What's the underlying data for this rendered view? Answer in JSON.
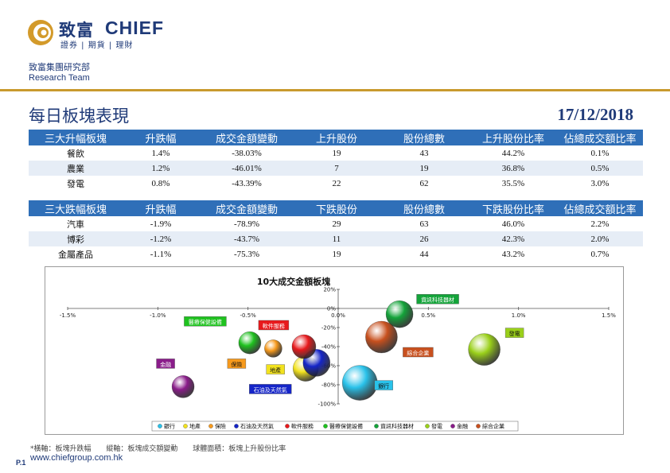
{
  "header": {
    "logo_cn": "致富",
    "logo_en": "CHIEF",
    "logo_tag": "證券 | 期貨 | 理財",
    "dept_cn": "致富集團研究部",
    "dept_en": "Research Team"
  },
  "title": "每日板塊表現",
  "date": "17/12/2018",
  "up_table": {
    "headers": [
      "三大升幅板塊",
      "升跌幅",
      "成交金額變動",
      "上升股份",
      "股份總數",
      "上升股份比率",
      "佔總成交額比率"
    ],
    "rows": [
      [
        "餐飲",
        "1.4%",
        "-38.03%",
        "19",
        "43",
        "44.2%",
        "0.1%"
      ],
      [
        "農業",
        "1.2%",
        "-46.01%",
        "7",
        "19",
        "36.8%",
        "0.5%"
      ],
      [
        "發電",
        "0.8%",
        "-43.39%",
        "22",
        "62",
        "35.5%",
        "3.0%"
      ]
    ]
  },
  "down_table": {
    "headers": [
      "三大跌幅板塊",
      "升跌幅",
      "成交金額變動",
      "下跌股份",
      "股份總數",
      "下跌股份比率",
      "佔總成交額比率"
    ],
    "rows": [
      [
        "汽車",
        "-1.9%",
        "-78.9%",
        "29",
        "63",
        "46.0%",
        "2.2%"
      ],
      [
        "博彩",
        "-1.2%",
        "-43.7%",
        "11",
        "26",
        "42.3%",
        "2.0%"
      ],
      [
        "金屬產品",
        "-1.1%",
        "-75.3%",
        "19",
        "44",
        "43.2%",
        "0.7%"
      ]
    ]
  },
  "chart_data": {
    "type": "scatter",
    "title": "10大成交金額板塊",
    "xlim": [
      -1.5,
      1.5
    ],
    "ylim": [
      -100,
      20
    ],
    "x_ticks": [
      "-1.5%",
      "-1.0%",
      "-0.5%",
      "0.0%",
      "0.5%",
      "1.0%",
      "1.5%"
    ],
    "y_ticks": [
      "20%",
      "0%",
      "-20%",
      "-40%",
      "-60%",
      "-80%",
      "-100%"
    ],
    "series": [
      {
        "name": "銀行",
        "x": 0.12,
        "y": -78,
        "size": 22,
        "color": "#29c2ea",
        "label_dx": 30,
        "label_dy": 4
      },
      {
        "name": "地產",
        "x": -0.18,
        "y": -63,
        "size": 16,
        "color": "#f2e21e",
        "label_dx": -38,
        "label_dy": 2
      },
      {
        "name": "保險",
        "x": -0.36,
        "y": -42,
        "size": 11,
        "color": "#f79a1c",
        "label_dx": -46,
        "label_dy": 20
      },
      {
        "name": "石油及天然氣",
        "x": -0.12,
        "y": -57,
        "size": 17,
        "color": "#1525c8",
        "label_dx": -58,
        "label_dy": 34
      },
      {
        "name": "軟件服務",
        "x": -0.19,
        "y": -40,
        "size": 15,
        "color": "#e8191c",
        "label_dx": -38,
        "label_dy": -26
      },
      {
        "name": "醫療保健設備",
        "x": -0.49,
        "y": -36,
        "size": 14,
        "color": "#1fc21f",
        "label_dx": -56,
        "label_dy": -26
      },
      {
        "name": "資訊科技器材",
        "x": 0.34,
        "y": -6,
        "size": 17,
        "color": "#14a43a",
        "label_dx": 48,
        "label_dy": -18
      },
      {
        "name": "發電",
        "x": 0.81,
        "y": -43,
        "size": 20,
        "color": "#9ad01a",
        "label_dx": 38,
        "label_dy": -20
      },
      {
        "name": "金融",
        "x": -0.86,
        "y": -82,
        "size": 14,
        "color": "#8a1c8a",
        "label_dx": -22,
        "label_dy": -28
      },
      {
        "name": "綜合企業",
        "x": 0.24,
        "y": -30,
        "size": 20,
        "color": "#c8501e",
        "label_dx": 46,
        "label_dy": 20
      }
    ],
    "legend_placement": "bottom",
    "grid": false
  },
  "footnote": [
    "*橫軸：板塊升跌幅",
    "縱軸：板塊成交額變動",
    "球體面積：板塊上升股份比率"
  ],
  "website": "www.chiefgroup.com.hk",
  "page_num": "P.1"
}
